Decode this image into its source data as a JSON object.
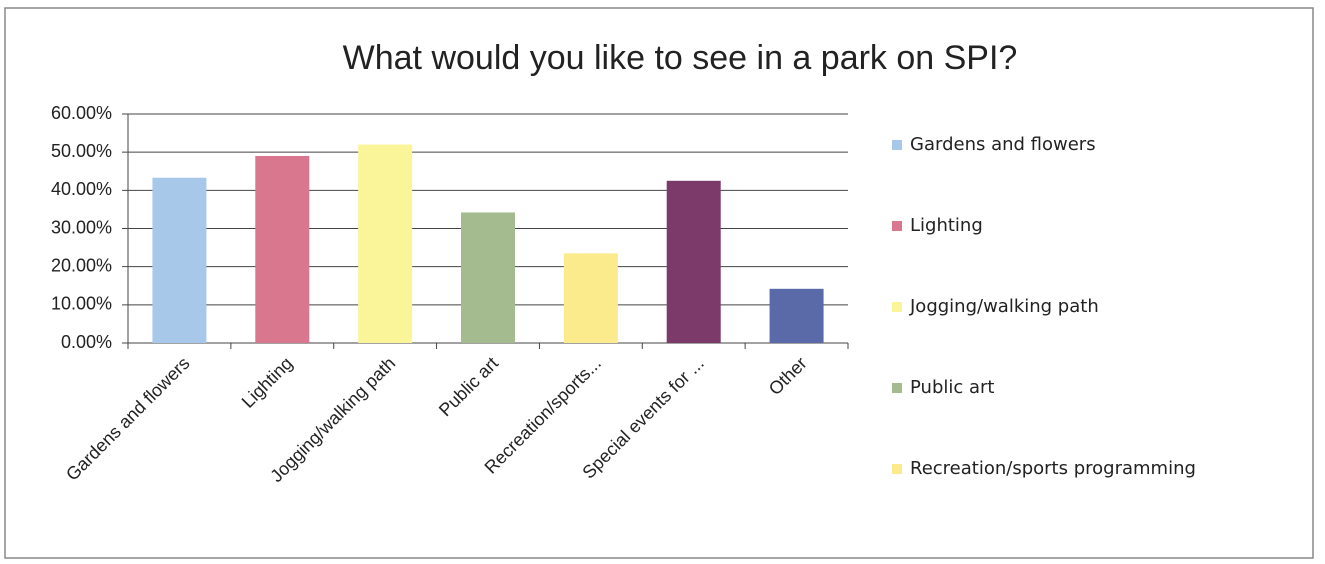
{
  "chart_data": {
    "type": "bar",
    "title": "What would you like to see in a park on SPI?",
    "categories": [
      "Gardens and flowers",
      "Lighting",
      "Jogging/walking path",
      "Public art",
      "Recreation/sports...",
      "Special events for ...",
      "Other"
    ],
    "values": [
      43.3,
      49,
      52,
      34.2,
      23.5,
      42.5,
      14.2
    ],
    "colors": [
      "#a8c8ea",
      "#d9778f",
      "#fbf59a",
      "#a3bb8f",
      "#fbeb8c",
      "#7b3a69",
      "#5a6aa8"
    ],
    "legend": [
      "Gardens and flowers",
      "Lighting",
      "Jogging/walking path",
      "Public art",
      "Recreation/sports programming"
    ],
    "ylim": [
      0,
      60
    ],
    "yticks": [
      {
        "value": 0,
        "label": "0.00%"
      },
      {
        "value": 10,
        "label": "10.00%"
      },
      {
        "value": 20,
        "label": "20.00%"
      },
      {
        "value": 30,
        "label": "30.00%"
      },
      {
        "value": 40,
        "label": "40.00%"
      },
      {
        "value": 50,
        "label": "50.00%"
      },
      {
        "value": 60,
        "label": "60.00%"
      }
    ],
    "grid": true
  }
}
